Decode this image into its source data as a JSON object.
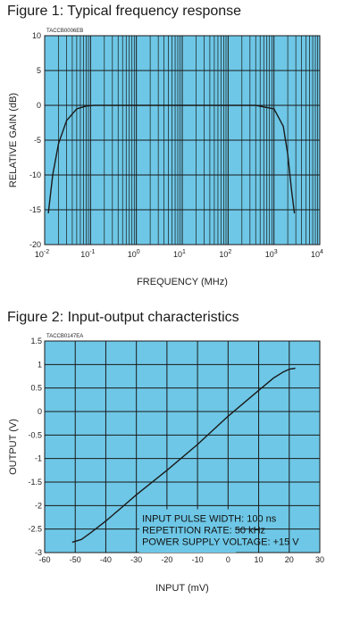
{
  "figures": [
    {
      "title": "Figure 1: Typical frequency response"
    },
    {
      "title": "Figure 2: Input-output characteristics"
    }
  ],
  "colors": {
    "plot_bg": "#6ec7e6",
    "grid": "#1a1a1a",
    "curve": "#1a1a1a"
  },
  "chart_data": [
    {
      "type": "line",
      "title": "Figure 1: Typical frequency response",
      "code": "TACCB0006EB",
      "xlabel": "FREQUENCY (MHz)",
      "ylabel": "RELATIVE GAIN (dB)",
      "xscale": "log",
      "xlim": [
        0.01,
        10000
      ],
      "ylim": [
        -20,
        10
      ],
      "xticks": [
        0.01,
        0.1,
        1,
        10,
        100,
        1000,
        10000
      ],
      "xtick_labels": [
        [
          "10",
          "-2"
        ],
        [
          "10",
          "-1"
        ],
        [
          "10",
          "0"
        ],
        [
          "10",
          "1"
        ],
        [
          "10",
          "2"
        ],
        [
          "10",
          "3"
        ],
        [
          "10",
          "4"
        ]
      ],
      "yticks": [
        10,
        5,
        0,
        -5,
        -10,
        -15,
        -20
      ],
      "ytick_labels": [
        "10",
        "5",
        "0",
        "-5",
        "-10",
        "-15",
        "-20"
      ],
      "grid": true,
      "series": [
        {
          "x": [
            0.012,
            0.015,
            0.02,
            0.03,
            0.05,
            0.08,
            0.12,
            0.3,
            1,
            10,
            100,
            400,
            1000,
            1600,
            2000,
            2400,
            2800
          ],
          "y": [
            -15.5,
            -10,
            -5.5,
            -2.2,
            -0.5,
            -0.1,
            0,
            0,
            0,
            0,
            0,
            0,
            -0.5,
            -3,
            -7,
            -12,
            -15.5
          ]
        }
      ]
    },
    {
      "type": "line",
      "title": "Figure 2: Input-output characteristics",
      "code": "TACCB0147EA",
      "xlabel": "INPUT (mV)",
      "ylabel": "OUTPUT (V)",
      "xlim": [
        -60,
        30
      ],
      "ylim": [
        -3,
        1.5
      ],
      "xticks": [
        -60,
        -50,
        -40,
        -30,
        -20,
        -10,
        0,
        10,
        20,
        30
      ],
      "xtick_labels": [
        "-60",
        "-50",
        "-40",
        "-30",
        "-20",
        "-10",
        "0",
        "10",
        "20",
        "30"
      ],
      "yticks": [
        1.5,
        1,
        0.5,
        0,
        -0.5,
        -1,
        -1.5,
        -2,
        -2.5,
        -3
      ],
      "ytick_labels": [
        "1.5",
        "1",
        "0.5",
        "0",
        "-0.5",
        "-1",
        "-1.5",
        "-2",
        "-2.5",
        "-3"
      ],
      "grid": true,
      "annotations": [
        "INPUT PULSE WIDTH: 100 ns",
        "REPETITION RATE: 50 kHz",
        "POWER SUPPLY VOLTAGE: +15 V"
      ],
      "series": [
        {
          "x": [
            -51,
            -48,
            -45,
            -40,
            -35,
            -30,
            -20,
            -10,
            0,
            10,
            15,
            18,
            20,
            22
          ],
          "y": [
            -2.78,
            -2.72,
            -2.58,
            -2.33,
            -2.05,
            -1.77,
            -1.25,
            -0.7,
            -0.1,
            0.45,
            0.72,
            0.84,
            0.9,
            0.92
          ]
        }
      ]
    }
  ]
}
